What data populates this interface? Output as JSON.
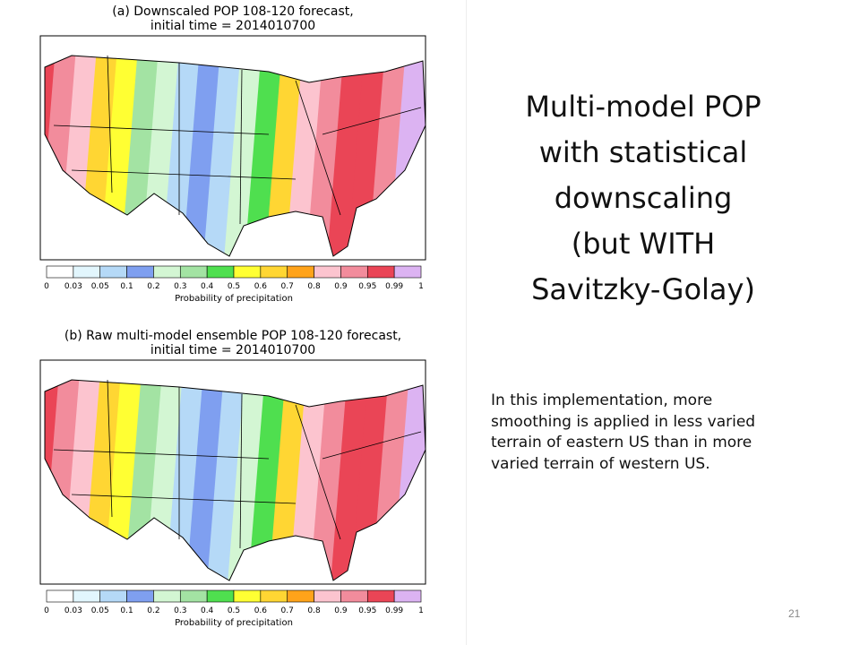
{
  "panels": [
    {
      "title": [
        "(a) Downscaled POP 108-120 forecast,",
        "initial time = 2014010700"
      ],
      "colorbar": {
        "ticks": [
          "0",
          "0.03",
          "0.05",
          "0.1",
          "0.2",
          "0.3",
          "0.4",
          "0.5",
          "0.6",
          "0.7",
          "0.8",
          "0.9",
          "0.95",
          "0.99",
          "1"
        ],
        "label": "Probability of precipitation"
      }
    },
    {
      "title": [
        "(b) Raw multi-model ensemble POP 108-120 forecast,",
        "initial time = 2014010700"
      ],
      "colorbar": {
        "ticks": [
          "0",
          "0.03",
          "0.05",
          "0.1",
          "0.2",
          "0.3",
          "0.4",
          "0.5",
          "0.6",
          "0.7",
          "0.8",
          "0.9",
          "0.95",
          "0.99",
          "1"
        ],
        "label": "Probability of precipitation"
      }
    }
  ],
  "colors": [
    "#ffffff",
    "#e2f6fd",
    "#b5d9f7",
    "#7f9ff0",
    "#d3f6d3",
    "#a3e3a3",
    "#4fdf4f",
    "#ffff33",
    "#ffd633",
    "#ffa31a",
    "#fcc4cf",
    "#f28c9c",
    "#ea4556",
    "#dcb3f2"
  ],
  "slide": {
    "title": [
      "Multi-model POP",
      "with statistical",
      "downscaling",
      "(but WITH",
      "Savitzky-Golay)"
    ],
    "body": "In this implementation, more smoothing is applied in less varied terrain of eastern US than in more varied terrain of western US.",
    "page_number": "21"
  }
}
